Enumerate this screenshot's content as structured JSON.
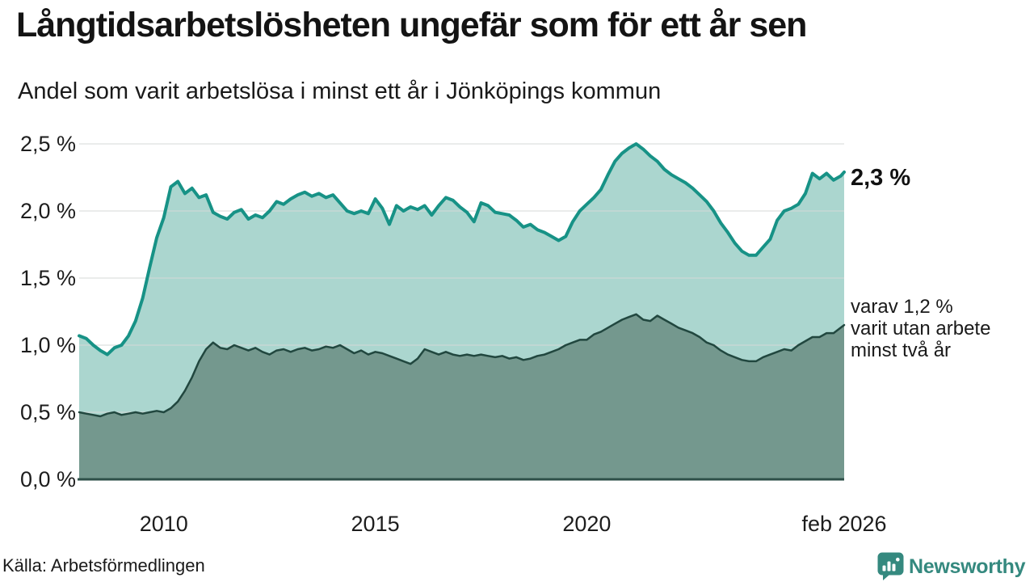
{
  "chart_data": {
    "type": "area",
    "title": "Långtidsarbetslösheten ungefär som för ett år sen",
    "subtitle": "Andel som varit arbetslösa i minst ett år i Jönköpings kommun",
    "unit": "%",
    "grid": true,
    "ylim": [
      0,
      2.6
    ],
    "x_start": 2008.0,
    "x_end": 2026.083,
    "x_step_months": 2,
    "yticks": [
      {
        "label": "2,5 %",
        "value": 2.5
      },
      {
        "label": "2,0 %",
        "value": 2.0
      },
      {
        "label": "1,5 %",
        "value": 1.5
      },
      {
        "label": "1,0 %",
        "value": 1.0
      },
      {
        "label": "0,5 %",
        "value": 0.5
      },
      {
        "label": "0,0 %",
        "value": 0.0
      }
    ],
    "xticks": [
      {
        "label": "2010",
        "year": 2010
      },
      {
        "label": "2015",
        "year": 2015
      },
      {
        "label": "2020",
        "year": 2020
      },
      {
        "label": "feb 2026",
        "year": 2026.083
      }
    ],
    "grid_color": "#d4d8d7",
    "baseline_color": "#2d4f48",
    "series": [
      {
        "name": "Andel som varit arbetslösa i minst ett år",
        "color": "#179286",
        "fill": "#abd6cf",
        "line_width": 4,
        "end_label": "2,3 %",
        "values": [
          1.07,
          1.05,
          1.0,
          0.96,
          0.93,
          0.98,
          1.0,
          1.07,
          1.18,
          1.35,
          1.58,
          1.8,
          1.95,
          2.18,
          2.22,
          2.13,
          2.17,
          2.1,
          2.12,
          1.99,
          1.96,
          1.94,
          1.99,
          2.01,
          1.94,
          1.97,
          1.95,
          2.0,
          2.07,
          2.05,
          2.09,
          2.12,
          2.14,
          2.11,
          2.13,
          2.1,
          2.12,
          2.06,
          2.0,
          1.98,
          2.0,
          1.98,
          2.09,
          2.02,
          1.9,
          2.04,
          2.0,
          2.03,
          2.01,
          2.04,
          1.97,
          2.04,
          2.1,
          2.08,
          2.03,
          1.99,
          1.92,
          2.06,
          2.04,
          1.99,
          1.98,
          1.97,
          1.93,
          1.88,
          1.9,
          1.86,
          1.84,
          1.81,
          1.78,
          1.81,
          1.92,
          2.0,
          2.05,
          2.1,
          2.16,
          2.27,
          2.37,
          2.43,
          2.47,
          2.5,
          2.46,
          2.41,
          2.37,
          2.31,
          2.27,
          2.24,
          2.21,
          2.17,
          2.12,
          2.07,
          2.0,
          1.91,
          1.84,
          1.76,
          1.7,
          1.67,
          1.67,
          1.73,
          1.79,
          1.93,
          2.0,
          2.02,
          2.05,
          2.13,
          2.28,
          2.24,
          2.28,
          2.23,
          2.26,
          2.29
        ]
      },
      {
        "name": "varav utan arbete minst två år",
        "color": "#21473f",
        "fill": "#74988e",
        "line_width": 2.5,
        "end_label": "varav 1,2 %\nvarit utan arbete\nminst två år",
        "values": [
          0.5,
          0.49,
          0.48,
          0.47,
          0.49,
          0.5,
          0.48,
          0.49,
          0.5,
          0.49,
          0.5,
          0.51,
          0.5,
          0.53,
          0.58,
          0.66,
          0.76,
          0.88,
          0.97,
          1.02,
          0.98,
          0.97,
          1.0,
          0.98,
          0.96,
          0.98,
          0.95,
          0.93,
          0.96,
          0.97,
          0.95,
          0.97,
          0.98,
          0.96,
          0.97,
          0.99,
          0.98,
          1.0,
          0.97,
          0.94,
          0.96,
          0.93,
          0.95,
          0.94,
          0.92,
          0.9,
          0.88,
          0.86,
          0.9,
          0.97,
          0.95,
          0.93,
          0.95,
          0.93,
          0.92,
          0.93,
          0.92,
          0.93,
          0.92,
          0.91,
          0.92,
          0.9,
          0.91,
          0.89,
          0.9,
          0.92,
          0.93,
          0.95,
          0.97,
          1.0,
          1.02,
          1.04,
          1.04,
          1.08,
          1.1,
          1.13,
          1.16,
          1.19,
          1.21,
          1.23,
          1.19,
          1.18,
          1.22,
          1.19,
          1.16,
          1.13,
          1.11,
          1.09,
          1.06,
          1.02,
          1.0,
          0.96,
          0.93,
          0.91,
          0.89,
          0.88,
          0.88,
          0.91,
          0.93,
          0.95,
          0.97,
          0.96,
          1.0,
          1.03,
          1.06,
          1.06,
          1.09,
          1.09,
          1.13,
          1.15
        ]
      }
    ]
  },
  "footer": {
    "source": "Källa: Arbetsförmedlingen",
    "brand": "Newsworthy",
    "brand_color": "#35897f"
  }
}
